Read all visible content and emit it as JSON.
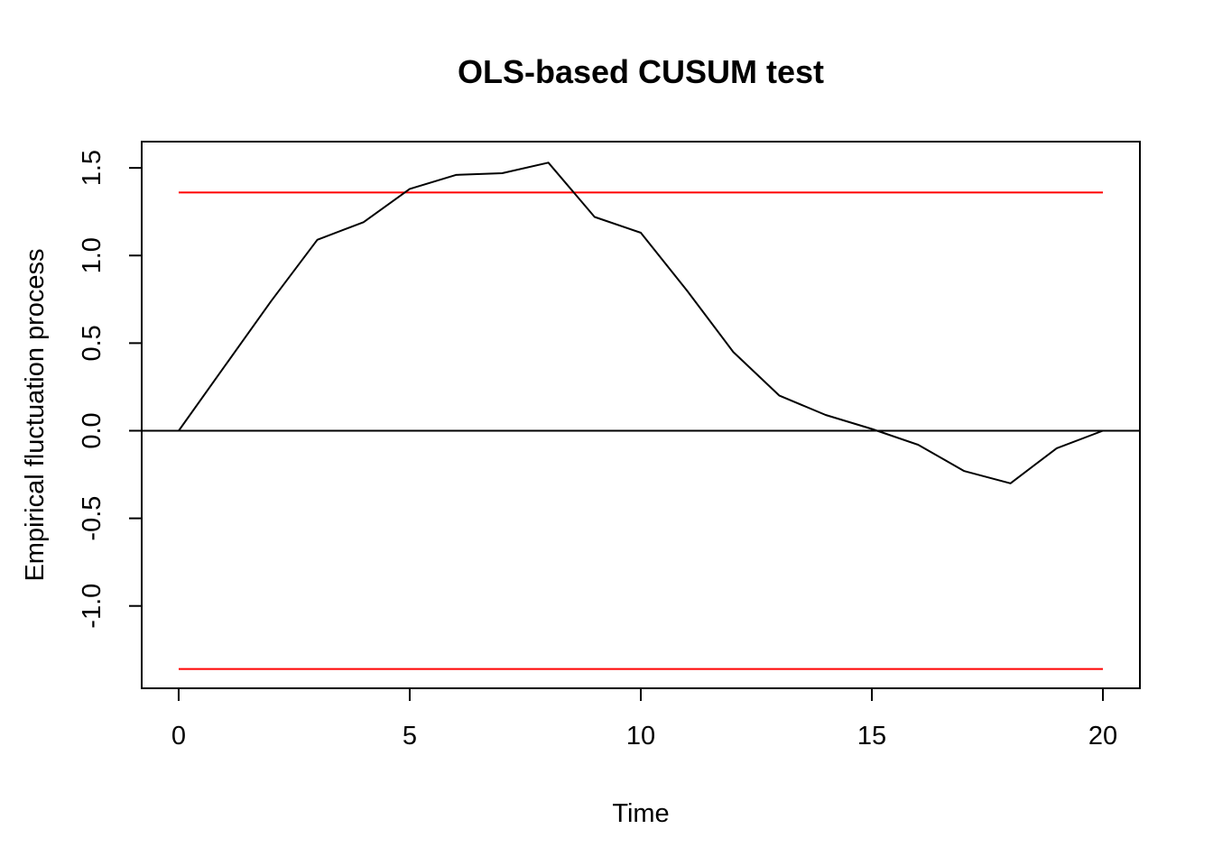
{
  "chart_data": {
    "type": "line",
    "title": "OLS-based CUSUM test",
    "xlabel": "Time",
    "ylabel": "Empirical fluctuation process",
    "xlim": [
      -0.8,
      20.8
    ],
    "ylim": [
      -1.47,
      1.65
    ],
    "x_ticks": [
      0,
      5,
      10,
      15,
      20
    ],
    "x_tick_labels": [
      "0",
      "5",
      "10",
      "15",
      "20"
    ],
    "y_ticks": [
      -1.0,
      -0.5,
      0.0,
      0.5,
      1.0,
      1.5
    ],
    "y_tick_labels": [
      "-1.0",
      "-0.5",
      "0.0",
      "0.5",
      "1.0",
      "1.5"
    ],
    "grid": false,
    "series": [
      {
        "x": [
          0,
          1,
          2,
          3,
          4,
          5,
          6,
          7,
          8,
          9,
          10,
          11,
          12,
          13,
          14,
          15,
          16,
          17,
          18,
          19,
          20
        ],
        "values": [
          0.0,
          0.37,
          0.74,
          1.09,
          1.19,
          1.38,
          1.46,
          1.47,
          1.53,
          1.22,
          1.13,
          0.8,
          0.45,
          0.2,
          0.09,
          0.01,
          -0.08,
          -0.23,
          -0.3,
          -0.1,
          0.0
        ],
        "color": "#000000"
      }
    ],
    "boundaries": [
      {
        "x": [
          0,
          20
        ],
        "y": [
          1.36,
          1.36
        ],
        "color": "#ff0000"
      },
      {
        "x": [
          0,
          20
        ],
        "y": [
          -1.36,
          -1.36
        ],
        "color": "#ff0000"
      }
    ],
    "reference_line": {
      "y": 0,
      "color": "#000000"
    }
  }
}
